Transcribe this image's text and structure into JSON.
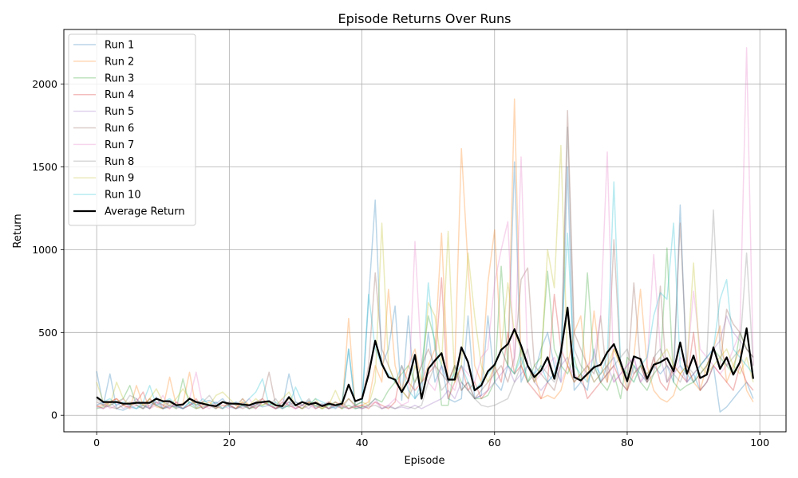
{
  "chart_data": {
    "type": "line",
    "title": "Episode Returns Over Runs",
    "xlabel": "Episode",
    "ylabel": "Return",
    "xlim": [
      -4.95,
      103.95
    ],
    "ylim": [
      -100,
      2330
    ],
    "xticks": [
      0,
      20,
      40,
      60,
      80,
      100
    ],
    "yticks": [
      0,
      500,
      1000,
      1500,
      2000
    ],
    "grid": true,
    "legend_position": "upper-left",
    "x": [
      0,
      1,
      2,
      3,
      4,
      5,
      6,
      7,
      8,
      9,
      10,
      11,
      12,
      13,
      14,
      15,
      16,
      17,
      18,
      19,
      20,
      21,
      22,
      23,
      24,
      25,
      26,
      27,
      28,
      29,
      30,
      31,
      32,
      33,
      34,
      35,
      36,
      37,
      38,
      39,
      40,
      41,
      42,
      43,
      44,
      45,
      46,
      47,
      48,
      49,
      50,
      51,
      52,
      53,
      54,
      55,
      56,
      57,
      58,
      59,
      60,
      61,
      62,
      63,
      64,
      65,
      66,
      67,
      68,
      69,
      70,
      71,
      72,
      73,
      74,
      75,
      76,
      77,
      78,
      79,
      80,
      81,
      82,
      83,
      84,
      85,
      86,
      87,
      88,
      89,
      90,
      91,
      92,
      93,
      94,
      95,
      96,
      97,
      98,
      99
    ],
    "series": [
      {
        "name": "Run 1",
        "color": "#1f77b4",
        "alpha": 0.3,
        "width": 1.5,
        "values": [
          265,
          60,
          250,
          40,
          30,
          50,
          40,
          60,
          40,
          110,
          40,
          50,
          55,
          40,
          80,
          45,
          80,
          90,
          70,
          100,
          50,
          40,
          60,
          40,
          70,
          50,
          60,
          40,
          50,
          250,
          80,
          60,
          90,
          50,
          70,
          40,
          50,
          60,
          400,
          40,
          50,
          700,
          1300,
          300,
          400,
          660,
          90,
          600,
          100,
          150,
          500,
          200,
          300,
          100,
          80,
          100,
          600,
          100,
          120,
          600,
          200,
          150,
          300,
          1530,
          200,
          300,
          250,
          400,
          500,
          300,
          200,
          1500,
          150,
          200,
          150,
          400,
          200,
          300,
          350,
          200,
          150,
          300,
          250,
          200,
          300,
          250,
          300,
          200,
          1270,
          200,
          250,
          150,
          200,
          300,
          20,
          50,
          100,
          150,
          200,
          100
        ]
      },
      {
        "name": "Run 2",
        "color": "#ff7f0e",
        "alpha": 0.3,
        "width": 1.5,
        "values": [
          50,
          60,
          80,
          100,
          60,
          40,
          180,
          60,
          100,
          50,
          40,
          230,
          60,
          70,
          260,
          40,
          60,
          80,
          40,
          60,
          60,
          40,
          100,
          60,
          40,
          80,
          60,
          40,
          60,
          100,
          60,
          40,
          80,
          60,
          40,
          80,
          60,
          40,
          585,
          50,
          60,
          80,
          300,
          200,
          760,
          300,
          150,
          300,
          400,
          200,
          300,
          400,
          1100,
          200,
          300,
          1610,
          900,
          300,
          200,
          800,
          1120,
          400,
          300,
          1910,
          300,
          200,
          250,
          100,
          120,
          100,
          150,
          300,
          500,
          600,
          200,
          630,
          300,
          200,
          400,
          300,
          150,
          350,
          760,
          300,
          150,
          100,
          80,
          120,
          250,
          300,
          200,
          150,
          300,
          400,
          540,
          200,
          300,
          400,
          150,
          80
        ]
      },
      {
        "name": "Run 3",
        "color": "#2ca02c",
        "alpha": 0.3,
        "width": 1.5,
        "values": [
          40,
          50,
          60,
          80,
          100,
          180,
          60,
          40,
          80,
          60,
          40,
          60,
          40,
          220,
          60,
          40,
          50,
          60,
          40,
          80,
          60,
          40,
          60,
          40,
          50,
          60,
          80,
          40,
          60,
          50,
          60,
          40,
          80,
          60,
          40,
          60,
          80,
          40,
          60,
          40,
          50,
          60,
          100,
          80,
          150,
          200,
          250,
          300,
          200,
          300,
          600,
          450,
          60,
          60,
          300,
          200,
          150,
          100,
          100,
          120,
          200,
          900,
          300,
          250,
          400,
          200,
          300,
          350,
          870,
          400,
          300,
          250,
          350,
          200,
          860,
          300,
          200,
          150,
          250,
          100,
          350,
          300,
          200,
          150,
          250,
          300,
          1010,
          200,
          150,
          180,
          200,
          250,
          300,
          400,
          350,
          300,
          250,
          500,
          400,
          350
        ]
      },
      {
        "name": "Run 4",
        "color": "#d62728",
        "alpha": 0.3,
        "width": 1.5,
        "values": [
          60,
          40,
          80,
          100,
          60,
          50,
          80,
          140,
          40,
          80,
          60,
          40,
          80,
          40,
          60,
          100,
          40,
          60,
          50,
          80,
          60,
          40,
          80,
          40,
          60,
          100,
          60,
          40,
          80,
          60,
          40,
          60,
          80,
          40,
          60,
          40,
          80,
          60,
          40,
          50,
          60,
          40,
          80,
          60,
          40,
          80,
          300,
          200,
          150,
          200,
          250,
          300,
          830,
          100,
          200,
          300,
          150,
          200,
          100,
          150,
          300,
          200,
          500,
          250,
          300,
          200,
          150,
          100,
          200,
          730,
          400,
          300,
          200,
          250,
          100,
          150,
          200,
          250,
          300,
          200,
          150,
          250,
          300,
          200,
          350,
          200,
          150,
          300,
          250,
          200,
          500,
          150,
          200,
          300,
          250,
          200,
          150,
          300,
          200,
          150
        ]
      },
      {
        "name": "Run 5",
        "color": "#9467bd",
        "alpha": 0.3,
        "width": 1.5,
        "values": [
          50,
          40,
          60,
          80,
          40,
          60,
          100,
          40,
          60,
          80,
          40,
          60,
          50,
          40,
          60,
          80,
          40,
          60,
          40,
          80,
          60,
          40,
          50,
          60,
          40,
          80,
          60,
          40,
          60,
          80,
          40,
          60,
          40,
          80,
          60,
          40,
          60,
          50,
          40,
          60,
          40,
          60,
          100,
          40,
          60,
          40,
          50,
          40,
          60,
          40,
          60,
          80,
          100,
          150,
          100,
          200,
          150,
          100,
          120,
          150,
          200,
          250,
          300,
          200,
          250,
          300,
          200,
          150,
          200,
          250,
          300,
          350,
          200,
          250,
          300,
          200,
          250,
          300,
          200,
          250,
          300,
          350,
          200,
          250,
          300,
          350,
          200,
          250,
          300,
          200,
          250,
          300,
          350,
          400,
          450,
          600,
          500,
          450,
          400,
          350
        ]
      },
      {
        "name": "Run 6",
        "color": "#8c564b",
        "alpha": 0.3,
        "width": 1.5,
        "values": [
          80,
          60,
          50,
          40,
          60,
          80,
          60,
          40,
          100,
          60,
          40,
          80,
          60,
          40,
          60,
          80,
          40,
          60,
          50,
          40,
          80,
          60,
          40,
          60,
          80,
          100,
          260,
          60,
          40,
          80,
          60,
          40,
          60,
          80,
          60,
          40,
          60,
          80,
          40,
          60,
          80,
          300,
          860,
          400,
          300,
          200,
          150,
          100,
          200,
          300,
          400,
          300,
          250,
          200,
          300,
          150,
          200,
          100,
          150,
          200,
          250,
          300,
          200,
          350,
          820,
          890,
          300,
          250,
          200,
          150,
          300,
          1840,
          500,
          400,
          300,
          250,
          600,
          200,
          1060,
          300,
          200,
          800,
          300,
          200,
          250,
          780,
          200,
          300,
          1160,
          300,
          200,
          250,
          300,
          400,
          300,
          640,
          550,
          500,
          400,
          350
        ]
      },
      {
        "name": "Run 7",
        "color": "#e377c2",
        "alpha": 0.3,
        "width": 1.5,
        "values": [
          60,
          80,
          40,
          60,
          100,
          40,
          60,
          80,
          40,
          60,
          120,
          40,
          80,
          60,
          100,
          260,
          60,
          40,
          80,
          60,
          40,
          80,
          60,
          100,
          40,
          80,
          60,
          40,
          100,
          60,
          40,
          80,
          60,
          40,
          60,
          80,
          40,
          60,
          100,
          50,
          40,
          60,
          80,
          40,
          60,
          100,
          60,
          80,
          1050,
          300,
          200,
          150,
          300,
          200,
          150,
          300,
          250,
          200,
          350,
          400,
          800,
          1000,
          1170,
          300,
          1560,
          300,
          200,
          250,
          300,
          350,
          200,
          300,
          250,
          200,
          300,
          350,
          600,
          1590,
          200,
          250,
          300,
          350,
          200,
          300,
          970,
          400,
          300,
          250,
          350,
          300,
          750,
          400,
          350,
          300,
          250,
          300,
          400,
          500,
          2220,
          300
        ]
      },
      {
        "name": "Run 8",
        "color": "#7f7f7f",
        "alpha": 0.3,
        "width": 1.5,
        "values": [
          100,
          60,
          80,
          40,
          60,
          120,
          100,
          60,
          40,
          100,
          60,
          80,
          40,
          60,
          100,
          60,
          80,
          120,
          60,
          40,
          80,
          60,
          100,
          40,
          60,
          80,
          60,
          100,
          40,
          60,
          80,
          60,
          100,
          40,
          60,
          80,
          60,
          40,
          100,
          60,
          40,
          50,
          60,
          40,
          50,
          40,
          60,
          50,
          40,
          60,
          200,
          300,
          150,
          200,
          300,
          150,
          200,
          100,
          60,
          50,
          60,
          80,
          100,
          200,
          300,
          400,
          200,
          300,
          250,
          200,
          300,
          1740,
          400,
          300,
          250,
          300,
          200,
          250,
          300,
          350,
          400,
          250,
          300,
          200,
          350,
          400,
          300,
          250,
          200,
          300,
          250,
          300,
          350,
          1240,
          400,
          300,
          350,
          400,
          980,
          300
        ]
      },
      {
        "name": "Run 9",
        "color": "#bcbd22",
        "alpha": 0.3,
        "width": 1.5,
        "values": [
          200,
          80,
          60,
          200,
          100,
          60,
          80,
          60,
          100,
          160,
          80,
          60,
          100,
          160,
          100,
          60,
          80,
          60,
          120,
          140,
          100,
          60,
          80,
          60,
          100,
          60,
          80,
          60,
          100,
          140,
          60,
          80,
          60,
          100,
          40,
          60,
          150,
          60,
          100,
          60,
          80,
          60,
          200,
          1160,
          300,
          200,
          150,
          100,
          300,
          200,
          680,
          600,
          300,
          1110,
          200,
          300,
          980,
          600,
          300,
          200,
          300,
          400,
          800,
          500,
          400,
          300,
          200,
          300,
          1000,
          770,
          1630,
          300,
          200,
          250,
          300,
          200,
          250,
          300,
          400,
          300,
          250,
          200,
          300,
          250,
          300,
          350,
          400,
          300,
          250,
          300,
          920,
          300,
          250,
          300,
          350,
          400,
          300,
          250,
          350,
          200
        ]
      },
      {
        "name": "Run 10",
        "color": "#17becf",
        "alpha": 0.3,
        "width": 1.5,
        "values": [
          60,
          80,
          100,
          60,
          80,
          60,
          40,
          80,
          180,
          60,
          80,
          100,
          60,
          40,
          80,
          60,
          100,
          60,
          80,
          40,
          60,
          80,
          60,
          100,
          140,
          220,
          60,
          80,
          40,
          60,
          170,
          80,
          60,
          100,
          80,
          60,
          40,
          80,
          400,
          60,
          80,
          730,
          400,
          300,
          250,
          200,
          300,
          150,
          100,
          200,
          800,
          400,
          300,
          200,
          250,
          300,
          200,
          150,
          200,
          250,
          300,
          400,
          300,
          250,
          350,
          200,
          250,
          300,
          200,
          250,
          400,
          1100,
          300,
          250,
          200,
          300,
          250,
          350,
          1410,
          300,
          250,
          200,
          300,
          350,
          600,
          740,
          700,
          1160,
          300,
          250,
          200,
          300,
          350,
          400,
          700,
          820,
          400,
          350,
          300,
          250
        ]
      },
      {
        "name": "Average Return",
        "color": "#000000",
        "alpha": 1.0,
        "width": 2.2,
        "values": [
          110,
          80,
          80,
          80,
          70,
          70,
          75,
          75,
          75,
          100,
          85,
          85,
          60,
          65,
          100,
          80,
          70,
          60,
          55,
          80,
          70,
          70,
          65,
          60,
          75,
          80,
          85,
          60,
          55,
          110,
          60,
          80,
          65,
          75,
          55,
          70,
          60,
          70,
          185,
          85,
          100,
          245,
          450,
          310,
          230,
          215,
          140,
          210,
          365,
          100,
          280,
          330,
          375,
          215,
          215,
          410,
          320,
          150,
          180,
          265,
          305,
          395,
          430,
          520,
          420,
          300,
          230,
          270,
          350,
          220,
          380,
          650,
          230,
          210,
          250,
          290,
          305,
          380,
          430,
          320,
          205,
          355,
          340,
          220,
          305,
          320,
          345,
          265,
          440,
          250,
          360,
          225,
          245,
          410,
          280,
          350,
          245,
          320,
          525,
          220
        ]
      }
    ]
  }
}
